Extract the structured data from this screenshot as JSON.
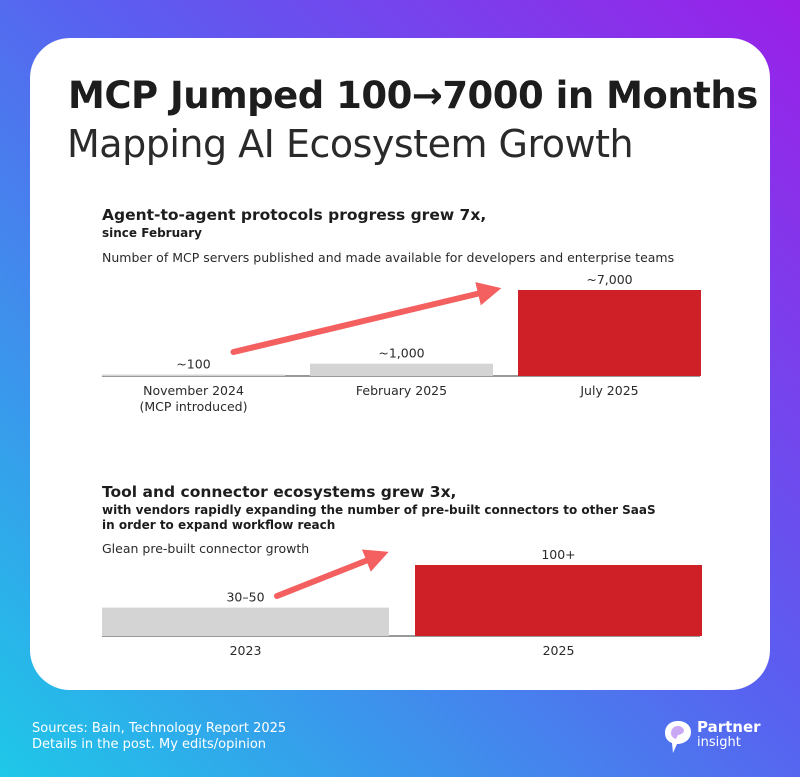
{
  "headline": "MCP Jumped 100→7000 in Months",
  "subheadline": "Mapping AI Ecosystem Growth",
  "colors": {
    "accent": "#cf2027",
    "gray_bar": "#d4d4d4",
    "arrow": "#f46060"
  },
  "chart_data": [
    {
      "type": "bar",
      "title": "Agent-to-agent protocols progress grew 7x,",
      "subtitle": "since February",
      "description": "Number of MCP servers published and made available for developers and enterprise teams",
      "categories": [
        "November 2024",
        "February 2025",
        "July 2025"
      ],
      "category_notes": [
        "(MCP introduced)",
        "",
        ""
      ],
      "values": [
        100,
        1000,
        7000
      ],
      "value_labels": [
        "~100",
        "~1,000",
        "~7,000"
      ],
      "ylim": [
        0,
        7000
      ],
      "highlight_index": 2,
      "annotation": "trend arrow from first to last bar",
      "xlabel": "",
      "ylabel": "",
      "grid": false
    },
    {
      "type": "bar",
      "title": "Tool and connector ecosystems grew 3x,",
      "subtitle_lines": [
        "with vendors rapidly expanding the number of pre-built connectors to other SaaS",
        "in order to expand workflow reach"
      ],
      "description": "Glean pre-built connector growth",
      "categories": [
        "2023",
        "2025"
      ],
      "values": [
        40,
        100
      ],
      "value_labels": [
        "30–50",
        "100+"
      ],
      "ylim": [
        0,
        100
      ],
      "highlight_index": 1,
      "annotation": "trend arrow from first to last bar",
      "xlabel": "",
      "ylabel": "",
      "grid": false
    }
  ],
  "footer": {
    "sources": "Sources: Bain, Technology Report 2025",
    "note": "Details in the post. My edits/opinion"
  },
  "brand": {
    "line1": "Partner",
    "line2": "insight",
    "icon": "partner-insight-logo-icon"
  }
}
